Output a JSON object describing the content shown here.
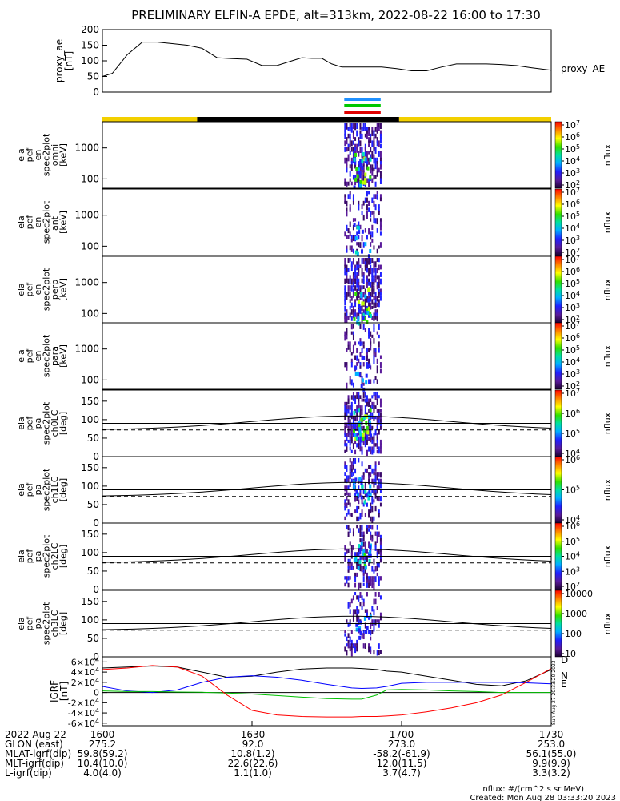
{
  "title": "PRELIMINARY ELFIN-A EPDE, alt=313km, 2022-08-22 16:00 to 17:30",
  "footer": {
    "nflux_units": "nflux: #/(cm^2 s sr MeV)",
    "created": "Created: Mon Aug 28 03:33:20 2023",
    "side_stamp": "Sun Aug 27 20:33:20 2023",
    "ephemeris_rows": [
      {
        "label": "2022 Aug 22",
        "values": [
          "1600",
          "1630",
          "1700",
          "1730"
        ]
      },
      {
        "label": "GLON (east)",
        "values": [
          "275.2",
          "92.0",
          "273.0",
          "253.0"
        ]
      },
      {
        "label": "MLAT-igrf(dip)",
        "values": [
          "59.8(59.2)",
          "10.8(1.2)",
          "-58.2(-61.9)",
          "56.1(55.0)"
        ]
      },
      {
        "label": "MLT-igrf(dip)",
        "values": [
          "10.4(10.0)",
          "22.6(22.6)",
          "12.0(11.5)",
          "9.9(9.9)"
        ]
      },
      {
        "label": "L-igrf(dip)",
        "values": [
          "4.0(4.0)",
          "1.1(1.0)",
          "3.7(4.7)",
          "3.3(3.2)"
        ]
      }
    ]
  },
  "chart_data": [
    {
      "id": "proxy_ae",
      "type": "line",
      "ylabel": [
        "proxy_ae",
        "[nT]"
      ],
      "series_label": "proxy_AE",
      "ylim": [
        0,
        200
      ],
      "yticks": [
        0,
        50,
        100,
        150,
        200
      ],
      "x_minutes": [
        0,
        2,
        5,
        8,
        11,
        14,
        17,
        20,
        23,
        26,
        29,
        32,
        35,
        38,
        40,
        42,
        44,
        46,
        48,
        50,
        53,
        56,
        59,
        62,
        65,
        68,
        71,
        74,
        77,
        80,
        83,
        86,
        90
      ],
      "values": [
        50,
        60,
        120,
        160,
        160,
        155,
        150,
        140,
        110,
        107,
        105,
        85,
        85,
        100,
        110,
        108,
        108,
        90,
        80,
        80,
        80,
        80,
        75,
        68,
        68,
        80,
        90,
        90,
        90,
        88,
        85,
        78,
        70
      ]
    },
    {
      "id": "status_bars",
      "type": "bar",
      "orbit_bar": [
        {
          "from_min": 0,
          "to_min": 19,
          "color": "#f3d000"
        },
        {
          "from_min": 19,
          "to_min": 59.5,
          "color": "#000000"
        },
        {
          "from_min": 59.5,
          "to_min": 90,
          "color": "#f3d000"
        }
      ],
      "science_zone_bars": [
        {
          "color": "#1e90ff",
          "from_min": 48.5,
          "to_min": 55.8
        },
        {
          "color": "#00c800",
          "from_min": 48.5,
          "to_min": 55.8
        },
        {
          "color": "#e00000",
          "from_min": 48.5,
          "to_min": 55.8
        }
      ]
    },
    {
      "id": "en_omni",
      "type": "heatmap",
      "ylabel": [
        "ela",
        "pef",
        "en",
        "spec2plot",
        "omni",
        "[keV]"
      ],
      "scale": "log",
      "yticks": [
        100,
        1000
      ],
      "ylim": [
        50,
        7000
      ],
      "cbar_label": "nflux",
      "cbar_ticks": [
        "10^2",
        "10^3",
        "10^4",
        "10^5",
        "10^6",
        "10^7"
      ],
      "intensity": "high"
    },
    {
      "id": "en_anti",
      "type": "heatmap",
      "ylabel": [
        "ela",
        "pef",
        "en",
        "spec2plot",
        "anti",
        "[keV]"
      ],
      "scale": "log",
      "yticks": [
        100,
        1000
      ],
      "ylim": [
        50,
        7000
      ],
      "cbar_label": "nflux",
      "cbar_ticks": [
        "10^2",
        "10^3",
        "10^4",
        "10^5",
        "10^6",
        "10^7"
      ],
      "intensity": "low"
    },
    {
      "id": "en_perp",
      "type": "heatmap",
      "ylabel": [
        "ela",
        "pef",
        "en",
        "spec2plot",
        "perp",
        "[keV]"
      ],
      "scale": "log",
      "yticks": [
        100,
        1000
      ],
      "ylim": [
        50,
        7000
      ],
      "cbar_label": "nflux",
      "cbar_ticks": [
        "10^2",
        "10^3",
        "10^4",
        "10^5",
        "10^6",
        "10^7"
      ],
      "intensity": "high"
    },
    {
      "id": "en_para",
      "type": "heatmap",
      "ylabel": [
        "ela",
        "pef",
        "en",
        "spec2plot",
        "para",
        "[keV]"
      ],
      "scale": "log",
      "yticks": [
        100,
        1000
      ],
      "ylim": [
        50,
        7000
      ],
      "cbar_label": "nflux",
      "cbar_ticks": [
        "10^2",
        "10^3",
        "10^4",
        "10^5",
        "10^6",
        "10^7"
      ],
      "intensity": "low"
    },
    {
      "id": "pa_ch0",
      "type": "heatmap",
      "ylabel": [
        "ela",
        "pef",
        "pa",
        "spec2plot",
        "ch0LC",
        "[deg]"
      ],
      "scale": "linear",
      "yticks": [
        0,
        50,
        100,
        150
      ],
      "ylim": [
        0,
        180
      ],
      "cbar_label": "nflux",
      "cbar_ticks": [
        "10^4",
        "10^5",
        "10^6",
        "10^7"
      ],
      "intensity": "high"
    },
    {
      "id": "pa_ch1",
      "type": "heatmap",
      "ylabel": [
        "ela",
        "pef",
        "pa",
        "spec2plot",
        "ch1LC",
        "[deg]"
      ],
      "scale": "linear",
      "yticks": [
        0,
        50,
        100,
        150
      ],
      "ylim": [
        0,
        180
      ],
      "cbar_label": "nflux",
      "cbar_ticks": [
        "10^4",
        "10^5",
        "10^6"
      ],
      "intensity": "mid"
    },
    {
      "id": "pa_ch2",
      "type": "heatmap",
      "ylabel": [
        "ela",
        "pef",
        "pa",
        "spec2plot",
        "ch2LC",
        "[deg]"
      ],
      "scale": "linear",
      "yticks": [
        0,
        50,
        100,
        150
      ],
      "ylim": [
        0,
        180
      ],
      "cbar_label": "nflux",
      "cbar_ticks": [
        "10^2",
        "10^3",
        "10^4",
        "10^5",
        "10^6"
      ],
      "intensity": "mid"
    },
    {
      "id": "pa_ch3",
      "type": "heatmap",
      "ylabel": [
        "ela",
        "pef",
        "pa",
        "spec2plot",
        "ch3LC",
        "[deg]"
      ],
      "scale": "linear",
      "yticks": [
        0,
        50,
        100,
        150
      ],
      "ylim": [
        0,
        180
      ],
      "cbar_label": "nflux",
      "cbar_ticks": [
        "10",
        "100",
        "1000",
        "10000"
      ],
      "intensity": "low"
    },
    {
      "id": "igrf",
      "type": "line",
      "ylabel": [
        "IGRF",
        "[nT]"
      ],
      "ylim": [
        -65000,
        70000
      ],
      "yticks": [
        -60000,
        -40000,
        -20000,
        0,
        20000,
        40000,
        60000
      ],
      "ytick_labels": [
        "-6×10^4",
        "-4×10^4",
        "-2×10^4",
        "0",
        "2×10^4",
        "4×10^4",
        "6×10^4"
      ],
      "x_minutes": [
        0,
        5,
        10,
        15,
        20,
        25,
        30,
        35,
        40,
        45,
        50,
        52,
        55,
        57,
        60,
        65,
        70,
        75,
        80,
        85,
        90
      ],
      "series": [
        {
          "name": "D",
          "color": "#000000",
          "values": [
            48000,
            50000,
            52000,
            50000,
            40000,
            30000,
            32000,
            40000,
            46000,
            48000,
            48000,
            47000,
            45000,
            42000,
            40000,
            32000,
            24000,
            16000,
            13000,
            23000,
            45000
          ]
        },
        {
          "name": "N",
          "color": "#0000ff",
          "values": [
            12000,
            3000,
            0,
            5000,
            20000,
            30000,
            33000,
            30000,
            24000,
            16000,
            9000,
            8000,
            9000,
            12000,
            18000,
            20000,
            20000,
            20000,
            20000,
            19000,
            17000
          ]
        },
        {
          "name": "E",
          "color": "#00c000",
          "values": [
            3000,
            2000,
            2000,
            1000,
            500,
            -1000,
            -3000,
            -6000,
            -9000,
            -12000,
            -13000,
            -13000,
            -5000,
            5000,
            6000,
            5000,
            3000,
            2000,
            0,
            0,
            0
          ]
        },
        {
          "name": "",
          "color": "#ff0000",
          "values": [
            45000,
            48000,
            53000,
            50000,
            32000,
            -5000,
            -35000,
            -44000,
            -47000,
            -48000,
            -48000,
            -47000,
            -47000,
            -46000,
            -44000,
            -38000,
            -30000,
            -20000,
            -5000,
            20000,
            47000
          ]
        }
      ]
    }
  ]
}
